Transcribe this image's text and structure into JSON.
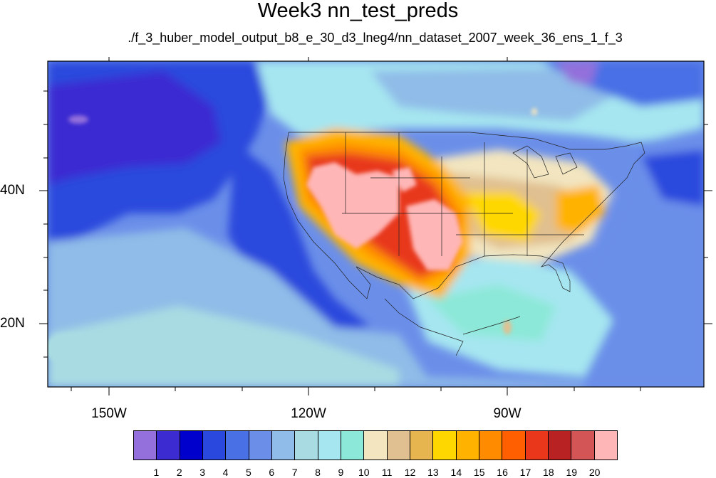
{
  "title": "Week3 nn_test_preds",
  "subtitle": "./f_3_huber_model_output_b8_e_30_d3_lneg4/nn_dataset_2007_week_36_ens_1_f_3",
  "map": {
    "lat_labels": [
      "40N",
      "20N"
    ],
    "lon_labels": [
      "150W",
      "120W",
      "90W"
    ]
  },
  "colorbar": {
    "levels": [
      "1",
      "2",
      "3",
      "4",
      "5",
      "6",
      "7",
      "8",
      "9",
      "10",
      "11",
      "12",
      "13",
      "14",
      "15",
      "16",
      "17",
      "18",
      "19",
      "20"
    ],
    "colors": [
      "#9370db",
      "#3b2bd1",
      "#0000cd",
      "#2a48dd",
      "#4a70e6",
      "#6b8fe9",
      "#8fbce8",
      "#a8dce2",
      "#a6e6f0",
      "#8ce8d8",
      "#f2e5c0",
      "#e0c090",
      "#e6b550",
      "#ffd700",
      "#ffb300",
      "#ff8c00",
      "#ff5f00",
      "#e8371a",
      "#b82222",
      "#d35555",
      "#ffb6b6"
    ]
  }
}
